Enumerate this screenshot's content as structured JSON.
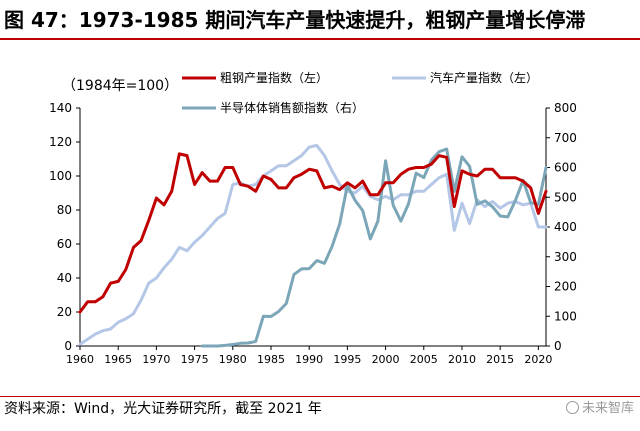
{
  "title": "图 47：1973-1985 期间汽车产量快速提升，粗钢产量增长停滞",
  "source": "资料来源：Wind，光大证券研究所，截至 2021 年",
  "watermark": "未来智库",
  "colors": {
    "steel": "#c00000",
    "auto": "#b4c7e7",
    "semi": "#7ba6b8",
    "rule": "#c00000"
  },
  "chart_data": {
    "type": "line",
    "index_note": "（1984年=100）",
    "x_ticks": [
      1960,
      1965,
      1970,
      1975,
      1980,
      1985,
      1990,
      1995,
      2000,
      2005,
      2010,
      2015,
      2020
    ],
    "xlim": [
      1960,
      2021
    ],
    "y_left": {
      "lim": [
        0,
        140
      ],
      "ticks": [
        0,
        20,
        40,
        60,
        80,
        100,
        120,
        140
      ]
    },
    "y_right": {
      "lim": [
        0,
        800
      ],
      "ticks": [
        0,
        100,
        200,
        300,
        400,
        500,
        600,
        700,
        800
      ]
    },
    "series": [
      {
        "name": "粗钢产量指数（左）",
        "axis": "left",
        "points": [
          [
            1960,
            20
          ],
          [
            1961,
            26
          ],
          [
            1962,
            26
          ],
          [
            1963,
            29
          ],
          [
            1964,
            37
          ],
          [
            1965,
            38
          ],
          [
            1966,
            45
          ],
          [
            1967,
            58
          ],
          [
            1968,
            62
          ],
          [
            1969,
            74
          ],
          [
            1970,
            87
          ],
          [
            1971,
            83
          ],
          [
            1972,
            91
          ],
          [
            1973,
            113
          ],
          [
            1974,
            112
          ],
          [
            1975,
            95
          ],
          [
            1976,
            102
          ],
          [
            1977,
            97
          ],
          [
            1978,
            97
          ],
          [
            1979,
            105
          ],
          [
            1980,
            105
          ],
          [
            1981,
            95
          ],
          [
            1982,
            94
          ],
          [
            1983,
            91
          ],
          [
            1984,
            100
          ],
          [
            1985,
            98
          ],
          [
            1986,
            93
          ],
          [
            1987,
            93
          ],
          [
            1988,
            99
          ],
          [
            1989,
            101
          ],
          [
            1990,
            104
          ],
          [
            1991,
            103
          ],
          [
            1992,
            93
          ],
          [
            1993,
            94
          ],
          [
            1994,
            92
          ],
          [
            1995,
            96
          ],
          [
            1996,
            93
          ],
          [
            1997,
            97
          ],
          [
            1998,
            89
          ],
          [
            1999,
            89
          ],
          [
            2000,
            96
          ],
          [
            2001,
            96
          ],
          [
            2002,
            101
          ],
          [
            2003,
            104
          ],
          [
            2004,
            105
          ],
          [
            2005,
            105
          ],
          [
            2006,
            107
          ],
          [
            2007,
            112
          ],
          [
            2008,
            111
          ],
          [
            2009,
            82
          ],
          [
            2010,
            103
          ],
          [
            2011,
            101
          ],
          [
            2012,
            100
          ],
          [
            2013,
            104
          ],
          [
            2014,
            104
          ],
          [
            2015,
            99
          ],
          [
            2016,
            99
          ],
          [
            2017,
            99
          ],
          [
            2018,
            97
          ],
          [
            2019,
            93
          ],
          [
            2020,
            78
          ],
          [
            2021,
            91
          ]
        ]
      },
      {
        "name": "汽车产量指数（左）",
        "axis": "left",
        "points": [
          [
            1960,
            1
          ],
          [
            1961,
            4
          ],
          [
            1962,
            7
          ],
          [
            1963,
            9
          ],
          [
            1964,
            10
          ],
          [
            1965,
            14
          ],
          [
            1966,
            16
          ],
          [
            1967,
            19
          ],
          [
            1968,
            27
          ],
          [
            1969,
            37
          ],
          [
            1970,
            40
          ],
          [
            1971,
            46
          ],
          [
            1972,
            51
          ],
          [
            1973,
            58
          ],
          [
            1974,
            56
          ],
          [
            1975,
            61
          ],
          [
            1976,
            65
          ],
          [
            1977,
            70
          ],
          [
            1978,
            75
          ],
          [
            1979,
            78
          ],
          [
            1980,
            95
          ],
          [
            1981,
            96
          ],
          [
            1982,
            94
          ],
          [
            1983,
            95
          ],
          [
            1984,
            100
          ],
          [
            1985,
            103
          ],
          [
            1986,
            106
          ],
          [
            1987,
            106
          ],
          [
            1988,
            109
          ],
          [
            1989,
            112
          ],
          [
            1990,
            117
          ],
          [
            1991,
            118
          ],
          [
            1992,
            112
          ],
          [
            1993,
            103
          ],
          [
            1994,
            95
          ],
          [
            1995,
            91
          ],
          [
            1996,
            90
          ],
          [
            1997,
            94
          ],
          [
            1998,
            88
          ],
          [
            1999,
            86
          ],
          [
            2000,
            88
          ],
          [
            2001,
            86
          ],
          [
            2002,
            89
          ],
          [
            2003,
            89
          ],
          [
            2004,
            91
          ],
          [
            2005,
            91
          ],
          [
            2006,
            95
          ],
          [
            2007,
            99
          ],
          [
            2008,
            101
          ],
          [
            2009,
            68
          ],
          [
            2010,
            84
          ],
          [
            2011,
            72
          ],
          [
            2012,
            86
          ],
          [
            2013,
            82
          ],
          [
            2014,
            85
          ],
          [
            2015,
            81
          ],
          [
            2016,
            84
          ],
          [
            2017,
            85
          ],
          [
            2018,
            83
          ],
          [
            2019,
            84
          ],
          [
            2020,
            70
          ],
          [
            2021,
            70
          ]
        ]
      },
      {
        "name": "半导体体销售额指数（右）",
        "axis": "right",
        "points": [
          [
            1976,
            0
          ],
          [
            1977,
            0
          ],
          [
            1978,
            0
          ],
          [
            1979,
            2
          ],
          [
            1980,
            5
          ],
          [
            1981,
            9
          ],
          [
            1982,
            10
          ],
          [
            1983,
            15
          ],
          [
            1984,
            100
          ],
          [
            1985,
            99
          ],
          [
            1986,
            116
          ],
          [
            1987,
            143
          ],
          [
            1988,
            240
          ],
          [
            1989,
            259
          ],
          [
            1990,
            260
          ],
          [
            1991,
            287
          ],
          [
            1992,
            278
          ],
          [
            1993,
            335
          ],
          [
            1994,
            410
          ],
          [
            1995,
            541
          ],
          [
            1996,
            490
          ],
          [
            1997,
            455
          ],
          [
            1998,
            360
          ],
          [
            1999,
            420
          ],
          [
            2000,
            623
          ],
          [
            2001,
            473
          ],
          [
            2002,
            420
          ],
          [
            2003,
            478
          ],
          [
            2004,
            581
          ],
          [
            2005,
            566
          ],
          [
            2006,
            625
          ],
          [
            2007,
            653
          ],
          [
            2008,
            662
          ],
          [
            2009,
            520
          ],
          [
            2010,
            636
          ],
          [
            2011,
            604
          ],
          [
            2012,
            476
          ],
          [
            2013,
            488
          ],
          [
            2014,
            468
          ],
          [
            2015,
            437
          ],
          [
            2016,
            434
          ],
          [
            2017,
            489
          ],
          [
            2018,
            557
          ],
          [
            2019,
            482
          ],
          [
            2020,
            476
          ],
          [
            2021,
            600
          ]
        ]
      }
    ],
    "legend": [
      "粗钢产量指数（左）",
      "汽车产量指数（左）",
      "半导体体销售额指数（右）"
    ]
  }
}
